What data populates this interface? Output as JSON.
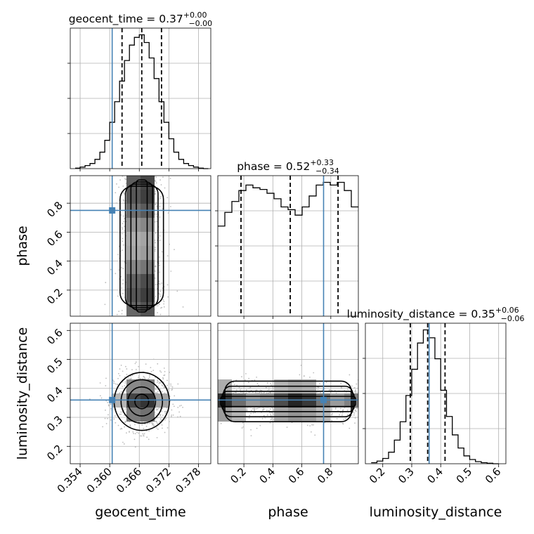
{
  "chart_data": {
    "type": "corner",
    "parameters": [
      {
        "name": "geocent_time",
        "xlabel": "geocent_time",
        "title_main": "geocent_time = 0.37",
        "title_sup": "+0.00",
        "title_sub": "−0.00",
        "range": [
          0.352,
          0.3805
        ],
        "ticks": [
          0.354,
          0.36,
          0.366,
          0.372,
          0.378
        ],
        "tick_labels": [
          "0.354",
          "0.360",
          "0.366",
          "0.372",
          "0.378"
        ],
        "truth": 0.3605,
        "quantiles": [
          0.3625,
          0.3665,
          0.3705
        ],
        "hist_x": [
          0.353,
          0.354,
          0.355,
          0.356,
          0.357,
          0.358,
          0.359,
          0.36,
          0.361,
          0.362,
          0.363,
          0.364,
          0.365,
          0.366,
          0.367,
          0.368,
          0.369,
          0.37,
          0.371,
          0.372,
          0.373,
          0.374,
          0.375,
          0.376,
          0.377,
          0.378,
          0.379
        ],
        "hist_y": [
          1,
          3,
          6,
          10,
          18,
          32,
          55,
          90,
          130,
          170,
          210,
          240,
          255,
          260,
          245,
          215,
          175,
          130,
          90,
          58,
          32,
          18,
          10,
          6,
          3,
          1,
          0
        ]
      },
      {
        "name": "phase",
        "xlabel": "phase",
        "ylabel": "phase",
        "title_main": "phase = 0.52",
        "title_sup": "+0.33",
        "title_sub": "−0.34",
        "range": [
          0.02,
          0.99
        ],
        "ticks": [
          0.2,
          0.4,
          0.6,
          0.8
        ],
        "tick_labels": [
          "0.2",
          "0.4",
          "0.6",
          "0.8"
        ],
        "truth": 0.75,
        "quantiles": [
          0.18,
          0.52,
          0.85
        ],
        "hist_x": [
          0.02,
          0.0685,
          0.117,
          0.1655,
          0.214,
          0.2625,
          0.311,
          0.3595,
          0.408,
          0.4565,
          0.505,
          0.5535,
          0.602,
          0.6505,
          0.699,
          0.7475,
          0.796,
          0.8445,
          0.893,
          0.9415
        ],
        "hist_y": [
          165,
          190,
          210,
          230,
          240,
          235,
          232,
          225,
          215,
          200,
          195,
          185,
          200,
          220,
          240,
          245,
          240,
          245,
          230,
          200
        ]
      },
      {
        "name": "luminosity_distance",
        "xlabel": "luminosity_distance",
        "ylabel": "luminosity_distance",
        "title_main": "luminosity_distance = 0.35",
        "title_sup": "+0.06",
        "title_sub": "−0.06",
        "range": [
          0.14,
          0.625
        ],
        "ticks": [
          0.2,
          0.3,
          0.4,
          0.5,
          0.6
        ],
        "tick_labels": [
          "0.2",
          "0.3",
          "0.4",
          "0.5",
          "0.6"
        ],
        "truth": 0.36,
        "quantiles": [
          0.295,
          0.355,
          0.415
        ],
        "hist_x": [
          0.16,
          0.18,
          0.2,
          0.22,
          0.24,
          0.26,
          0.28,
          0.3,
          0.32,
          0.34,
          0.36,
          0.38,
          0.4,
          0.42,
          0.44,
          0.46,
          0.48,
          0.5,
          0.52,
          0.54,
          0.56,
          0.58
        ],
        "hist_y": [
          2,
          5,
          10,
          22,
          45,
          80,
          130,
          180,
          230,
          255,
          240,
          200,
          140,
          90,
          55,
          30,
          15,
          8,
          4,
          2,
          1,
          0
        ]
      }
    ]
  }
}
